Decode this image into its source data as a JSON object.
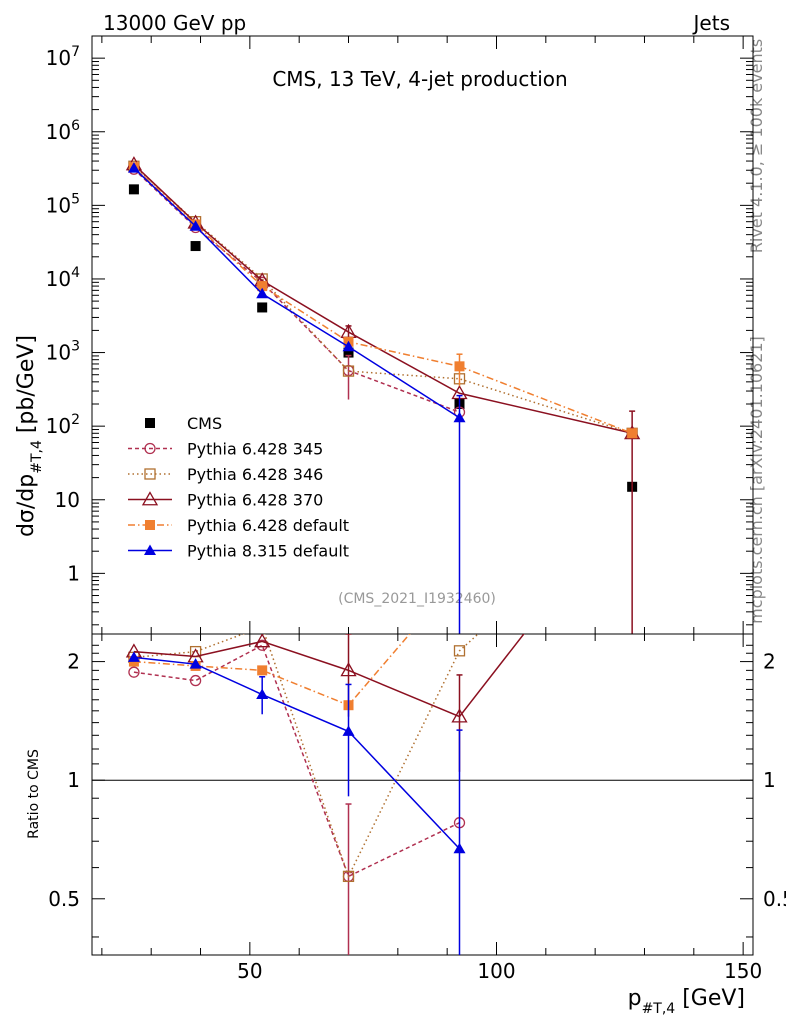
{
  "header": {
    "left": "13000 GeV pp",
    "right": "Jets",
    "side_top": "Rivet 4.1.0, ≥ 100k events",
    "side_bottom": "mcplots.cern.ch [arXiv:2401.10621]"
  },
  "chart_data": {
    "type": "scatter",
    "title": "CMS, 13 TeV, 4-jet production",
    "analysis_id": "(CMS_2021_I1932460)",
    "xlabel_main": "p",
    "xlabel_sub": "#T,4",
    "xlabel_unit": " [GeV]",
    "ylabel_main": "dσ/dp",
    "ylabel_sub": "#T,4",
    "ylabel_unit": " [pb/GeV]",
    "ratio_ylabel": "Ratio to CMS",
    "xlim": [
      18,
      152
    ],
    "ylim": [
      0.15,
      20000000
    ],
    "ratio_ylim": [
      0.36,
      2.35
    ],
    "x_ticks": [
      {
        "v": 50,
        "label": "50"
      },
      {
        "v": 100,
        "label": "100"
      },
      {
        "v": 150,
        "label": "150"
      }
    ],
    "y_ticks": [
      {
        "v": 1,
        "label": "1"
      },
      {
        "v": 10,
        "label": "10"
      },
      {
        "v": 100,
        "base": "10",
        "exp": "2"
      },
      {
        "v": 1000,
        "base": "10",
        "exp": "3"
      },
      {
        "v": 10000,
        "base": "10",
        "exp": "4"
      },
      {
        "v": 100000,
        "base": "10",
        "exp": "5"
      },
      {
        "v": 1000000,
        "base": "10",
        "exp": "6"
      },
      {
        "v": 10000000,
        "base": "10",
        "exp": "7"
      }
    ],
    "ratio_ticks": [
      {
        "v": 0.5,
        "label": "0.5"
      },
      {
        "v": 1,
        "label": "1"
      },
      {
        "v": 2,
        "label": "2"
      }
    ],
    "series": [
      {
        "name": "CMS",
        "color": "#000000",
        "marker": "square-filled",
        "line": "none",
        "x": [
          26.5,
          39,
          52.5,
          70,
          92.5,
          127.5
        ],
        "y": [
          165000,
          28000,
          4100,
          1000,
          200,
          15
        ]
      },
      {
        "name": "Pythia 6.428 345",
        "color": "#b03050",
        "marker": "circle-open",
        "line": "4,3",
        "x": [
          26.5,
          39,
          52.5,
          70,
          92.5
        ],
        "y": [
          310000,
          50000,
          9000,
          570,
          155
        ],
        "yerr": [
          0,
          0,
          0,
          340,
          0
        ],
        "ratio": [
          1.88,
          1.79,
          2.2,
          0.57,
          0.78
        ],
        "rerr": [
          0,
          0,
          0,
          0.3,
          0
        ]
      },
      {
        "name": "Pythia 6.428 346",
        "color": "#b07030",
        "marker": "square-open",
        "line": "1.5,3",
        "x": [
          26.5,
          39,
          52.5,
          70,
          92.5,
          127.5
        ],
        "y": [
          340000,
          60000,
          10000,
          560,
          440,
          80
        ],
        "yerr": [
          0,
          0,
          0,
          0,
          0,
          0
        ],
        "ratio": [
          2.05,
          2.12,
          2.45,
          0.57,
          2.13,
          5.3
        ],
        "rerr": [
          0,
          0,
          0,
          0,
          0,
          0
        ]
      },
      {
        "name": "Pythia 6.428 370",
        "color": "#8b1020",
        "marker": "triangle-open",
        "line": "none-solid",
        "x": [
          26.5,
          39,
          52.5,
          70,
          92.5,
          127.5
        ],
        "y": [
          360000,
          58000,
          9500,
          1900,
          280,
          80
        ],
        "yerr": [
          0,
          0,
          0,
          400,
          0,
          80
        ],
        "ratio": [
          2.12,
          2.06,
          2.25,
          1.9,
          1.45,
          5.3
        ],
        "rerr": [
          0,
          0,
          0,
          0.45,
          0.4,
          0
        ]
      },
      {
        "name": "Pythia 6.428 default",
        "color": "#f07f30",
        "marker": "square-filled",
        "line": "7,3,1.5,3",
        "x": [
          26.5,
          39,
          52.5,
          70,
          92.5,
          127.5
        ],
        "y": [
          330000,
          55000,
          8000,
          1400,
          650,
          80
        ],
        "yerr": [
          0,
          0,
          0,
          0,
          300,
          0
        ],
        "ratio": [
          2.0,
          1.95,
          1.9,
          1.55,
          3.3,
          5.3
        ],
        "rerr": [
          0,
          0,
          0,
          0,
          0,
          0
        ]
      },
      {
        "name": "Pythia 8.315 default",
        "color": "#0000e0",
        "marker": "triangle-filled",
        "line": "solid",
        "x": [
          26.5,
          39,
          52.5,
          70,
          92.5
        ],
        "y": [
          320000,
          52000,
          6300,
          1200,
          130
        ],
        "yerr": [
          0,
          0,
          0,
          0,
          130
        ],
        "ratio": [
          2.05,
          1.97,
          1.65,
          1.33,
          0.67
        ],
        "rerr": [
          0,
          0,
          0.18,
          0.42,
          0.67
        ]
      }
    ]
  }
}
